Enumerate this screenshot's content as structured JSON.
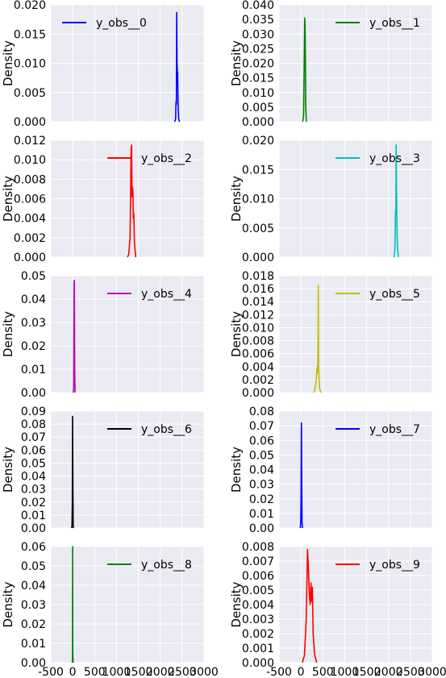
{
  "chart_data": {
    "type": "line",
    "layout": "5x2 grid of density plots",
    "shared_x_ticks": [
      "-500",
      "0",
      "500",
      "1000",
      "1500",
      "2000",
      "2500",
      "3000"
    ],
    "xlim": [
      -500,
      3000
    ],
    "grid": true,
    "background": "#EAEAF2",
    "legend_position": "upper-right",
    "panels": [
      {
        "series_name": "y_obs__0",
        "color": "#0000FF",
        "ylabel": "Density",
        "ylim": [
          0,
          0.02
        ],
        "yticks": [
          "0.000",
          "0.005",
          "0.010",
          "0.015",
          "0.020"
        ],
        "points": [
          [
            2330,
            0
          ],
          [
            2350,
            0.0005
          ],
          [
            2360,
            0.0035
          ],
          [
            2368,
            0.003
          ],
          [
            2375,
            0.0187
          ],
          [
            2382,
            0.01
          ],
          [
            2390,
            0.0085
          ],
          [
            2398,
            0.0085
          ],
          [
            2405,
            0.0035
          ],
          [
            2420,
            0.0005
          ],
          [
            2440,
            0
          ]
        ]
      },
      {
        "series_name": "y_obs__1",
        "color": "#008000",
        "ylabel": "",
        "ylim": [
          0,
          0.04
        ],
        "yticks": [
          "0.000",
          "0.005",
          "0.010",
          "0.015",
          "0.020",
          "0.025",
          "0.030",
          "0.035",
          "0.040"
        ],
        "points": [
          [
            40,
            0
          ],
          [
            60,
            0.002
          ],
          [
            75,
            0.02
          ],
          [
            85,
            0.0355
          ],
          [
            93,
            0.033
          ],
          [
            100,
            0.024
          ],
          [
            110,
            0.005
          ],
          [
            125,
            0
          ]
        ]
      },
      {
        "series_name": "y_obs__2",
        "color": "#FF0000",
        "ylabel": "Density",
        "ylim": [
          0,
          0.012
        ],
        "yticks": [
          "0.000",
          "0.002",
          "0.004",
          "0.006",
          "0.008",
          "0.010",
          "0.012"
        ],
        "points": [
          [
            1250,
            0
          ],
          [
            1280,
            0.0003
          ],
          [
            1310,
            0.002
          ],
          [
            1335,
            0.0112
          ],
          [
            1345,
            0.0115
          ],
          [
            1355,
            0.0062
          ],
          [
            1365,
            0.0072
          ],
          [
            1375,
            0.0068
          ],
          [
            1385,
            0.004
          ],
          [
            1395,
            0.0045
          ],
          [
            1410,
            0.0015
          ],
          [
            1440,
            0
          ]
        ]
      },
      {
        "series_name": "y_obs__3",
        "color": "#00BFBF",
        "ylabel": "",
        "ylim": [
          0,
          0.02
        ],
        "yticks": [
          "0.000",
          "0.005",
          "0.010",
          "0.015",
          "0.020"
        ],
        "points": [
          [
            2130,
            0
          ],
          [
            2150,
            0.002
          ],
          [
            2160,
            0.008
          ],
          [
            2168,
            0.0075
          ],
          [
            2175,
            0.0192
          ],
          [
            2182,
            0.012
          ],
          [
            2192,
            0.006
          ],
          [
            2205,
            0.002
          ],
          [
            2225,
            0
          ]
        ]
      },
      {
        "series_name": "y_obs__4",
        "color": "#BF00BF",
        "ylabel": "Density",
        "ylim": [
          0,
          0.05
        ],
        "yticks": [
          "0.00",
          "0.01",
          "0.02",
          "0.03",
          "0.04",
          "0.05"
        ],
        "points": [
          [
            10,
            0
          ],
          [
            22,
            0.002
          ],
          [
            32,
            0.047
          ],
          [
            38,
            0.048
          ],
          [
            45,
            0.01
          ],
          [
            55,
            0
          ]
        ]
      },
      {
        "series_name": "y_obs__5",
        "color": "#BFBF00",
        "ylabel": "",
        "ylim": [
          0,
          0.018
        ],
        "yticks": [
          "0.000",
          "0.002",
          "0.004",
          "0.006",
          "0.008",
          "0.010",
          "0.012",
          "0.014",
          "0.016",
          "0.018"
        ],
        "points": [
          [
            300,
            0
          ],
          [
            330,
            0.001
          ],
          [
            350,
            0.002
          ],
          [
            365,
            0.0038
          ],
          [
            372,
            0.003
          ],
          [
            380,
            0.0042
          ],
          [
            388,
            0.0035
          ],
          [
            396,
            0.0165
          ],
          [
            405,
            0.004
          ],
          [
            415,
            0.0018
          ],
          [
            430,
            0.0005
          ],
          [
            460,
            0
          ]
        ]
      },
      {
        "series_name": "y_obs__6",
        "color": "#000000",
        "ylabel": "Density",
        "ylim": [
          0,
          0.09
        ],
        "yticks": [
          "0.00",
          "0.01",
          "0.02",
          "0.03",
          "0.04",
          "0.05",
          "0.06",
          "0.07",
          "0.08",
          "0.09"
        ],
        "points": [
          [
            -25,
            0
          ],
          [
            -15,
            0.002
          ],
          [
            -8,
            0.02
          ],
          [
            -2,
            0.086
          ],
          [
            4,
            0.03
          ],
          [
            10,
            0.002
          ],
          [
            18,
            0
          ]
        ]
      },
      {
        "series_name": "y_obs__7",
        "color": "#0000FF",
        "ylabel": "",
        "ylim": [
          0,
          0.08
        ],
        "yticks": [
          "0.00",
          "0.01",
          "0.02",
          "0.03",
          "0.04",
          "0.05",
          "0.06",
          "0.07",
          "0.08"
        ],
        "points": [
          [
            -15,
            0
          ],
          [
            -5,
            0.004
          ],
          [
            3,
            0.02
          ],
          [
            10,
            0.072
          ],
          [
            17,
            0.03
          ],
          [
            25,
            0.004
          ],
          [
            35,
            0
          ]
        ]
      },
      {
        "series_name": "y_obs__8",
        "color": "#008000",
        "ylabel": "Density",
        "ylim": [
          0,
          0.06
        ],
        "yticks": [
          "0.00",
          "0.01",
          "0.02",
          "0.03",
          "0.04",
          "0.05",
          "0.06"
        ],
        "points": [
          [
            -8,
            0
          ],
          [
            -3,
            0.005
          ],
          [
            0,
            0.06
          ],
          [
            3,
            0.005
          ],
          [
            8,
            0
          ]
        ]
      },
      {
        "series_name": "y_obs__9",
        "color": "#FF0000",
        "ylabel": "",
        "ylim": [
          0,
          0.008
        ],
        "yticks": [
          "0.000",
          "0.001",
          "0.002",
          "0.003",
          "0.004",
          "0.005",
          "0.006",
          "0.007",
          "0.008"
        ],
        "points": [
          [
            30,
            0
          ],
          [
            80,
            0.0005
          ],
          [
            120,
            0.003
          ],
          [
            150,
            0.0078
          ],
          [
            170,
            0.0065
          ],
          [
            190,
            0.0048
          ],
          [
            210,
            0.004
          ],
          [
            230,
            0.0055
          ],
          [
            245,
            0.0042
          ],
          [
            260,
            0.0052
          ],
          [
            280,
            0.002
          ],
          [
            310,
            0.0006
          ],
          [
            360,
            0
          ]
        ]
      }
    ]
  }
}
